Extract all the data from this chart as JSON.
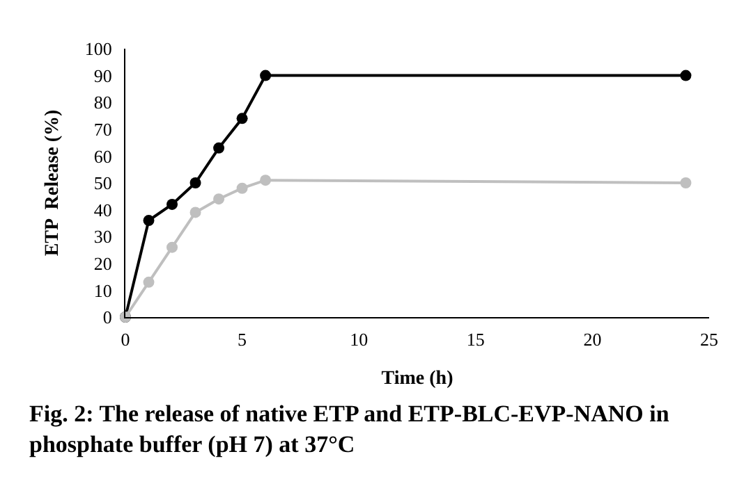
{
  "chart_data": {
    "type": "line",
    "xlabel": "Time (h)",
    "ylabel": "ETP  Release (%)",
    "x": [
      0,
      1,
      2,
      3,
      4,
      5,
      6,
      24
    ],
    "series": [
      {
        "color": "#000000",
        "values": [
          0,
          36,
          42,
          50,
          63,
          74,
          90,
          90
        ]
      },
      {
        "color": "#bfbfbf",
        "values": [
          0,
          13,
          26,
          39,
          44,
          48,
          51,
          50
        ]
      }
    ],
    "xlim": [
      0,
      25
    ],
    "xticks": [
      0,
      5,
      10,
      15,
      20,
      25
    ],
    "ylim": [
      0,
      100
    ],
    "yticks": [
      0,
      10,
      20,
      30,
      40,
      50,
      60,
      70,
      80,
      90,
      100
    ],
    "marker": "circle",
    "line_style": "solid",
    "annotations": [
      "Fig. 2: The release of native ETP and ETP-BLC-EVP-NANO in\nphosphate buffer (pH 7) at 37°C"
    ]
  }
}
